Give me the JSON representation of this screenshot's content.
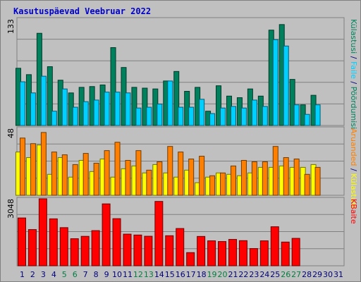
{
  "title": "Kasutuspäevad Veebruar 2022",
  "colors": {
    "visits": "#00805c",
    "files": "#00d0ff",
    "pages": "#ff8000",
    "hits": "#ffff00",
    "kbytes": "#ff0000",
    "weekend_label": "#008040",
    "weekday_label": "#000080"
  },
  "chart_data": [
    {
      "type": "bar",
      "categories": [
        "1",
        "2",
        "3",
        "4",
        "5",
        "6",
        "7",
        "8",
        "9",
        "10",
        "11",
        "12",
        "13",
        "14",
        "15",
        "16",
        "17",
        "18",
        "19",
        "20",
        "21",
        "22",
        "23",
        "24",
        "25",
        "26",
        "27",
        "28",
        "29",
        "30",
        "31"
      ],
      "weekend_days": [
        "5",
        "6",
        "12",
        "13",
        "19",
        "20",
        "26",
        "27"
      ],
      "ymax_label": "133",
      "ylim": [
        0,
        133
      ],
      "right_label": [
        {
          "text": "Külastusi",
          "color": "#00805c"
        },
        {
          "text": " / ",
          "color": "#000080"
        },
        {
          "text": "Faile",
          "color": "#00d0ff"
        },
        {
          "text": " / ",
          "color": "#000080"
        },
        {
          "text": "Pöördumisi",
          "color": "#00805c"
        }
      ],
      "series": [
        {
          "name": "Külastusi",
          "key": "visits",
          "values": [
            72,
            64,
            116,
            74,
            57,
            41,
            48,
            49,
            51,
            98,
            73,
            48,
            47,
            46,
            56,
            68,
            43,
            48,
            18,
            50,
            37,
            35,
            46,
            37,
            120,
            127,
            58,
            26,
            38,
            null,
            null
          ]
        },
        {
          "name": "Faile",
          "key": "files",
          "values": [
            55,
            41,
            62,
            18,
            46,
            23,
            30,
            32,
            42,
            42,
            41,
            22,
            23,
            27,
            56,
            23,
            23,
            33,
            15,
            22,
            24,
            22,
            32,
            24,
            108,
            100,
            26,
            14,
            26,
            null,
            null
          ]
        }
      ]
    },
    {
      "type": "bar",
      "ymax_label": "48",
      "ylim": [
        0,
        48
      ],
      "right_label": [
        {
          "text": "Aruanded",
          "color": "#ff8000"
        },
        {
          "text": " / ",
          "color": "#000080"
        },
        {
          "text": "Külastusi",
          "color": "#ffff00"
        }
      ],
      "series": [
        {
          "name": "Külastusi",
          "key": "hits",
          "values": [
            31,
            27,
            36,
            15,
            27,
            13,
            25,
            17,
            26,
            13,
            19,
            21,
            16,
            22,
            16,
            13,
            18,
            9,
            13,
            16,
            15,
            14,
            16,
            20,
            20,
            21,
            20,
            20,
            22,
            null,
            null
          ]
        },
        {
          "name": "Aruanded",
          "key": "pages",
          "values": [
            41,
            37,
            45,
            31,
            29,
            22,
            30,
            23,
            32,
            38,
            25,
            32,
            18,
            24,
            35,
            31,
            26,
            28,
            14,
            16,
            21,
            25,
            24,
            24,
            35,
            27,
            26,
            15,
            20,
            null,
            null
          ]
        }
      ]
    },
    {
      "type": "bar",
      "ymax_label": "3048",
      "ylim": [
        0,
        3048
      ],
      "right_label": [
        {
          "text": "KBaite",
          "color": "#ff0000"
        }
      ],
      "series": [
        {
          "name": "KBaite",
          "key": "kbytes",
          "values": [
            2176,
            1648,
            3048,
            2136,
            1736,
            1232,
            1340,
            1600,
            2816,
            2144,
            1440,
            1400,
            1344,
            2928,
            1368,
            1696,
            600,
            1336,
            1136,
            1104,
            1200,
            1144,
            784,
            1136,
            1776,
            1080,
            1248,
            null,
            null,
            null,
            null
          ]
        }
      ]
    }
  ]
}
